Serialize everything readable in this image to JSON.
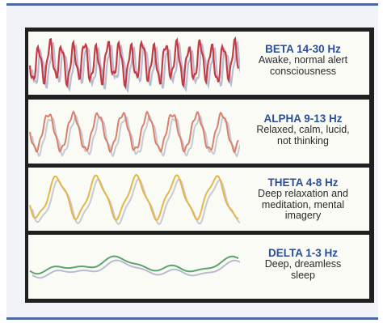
{
  "waves": [
    {
      "id": "beta",
      "title": "BETA 14-30 Hz",
      "lines": [
        "Awake, normal alert",
        "consciousness"
      ],
      "color": "#c63a45",
      "shadow": "#b9bccf"
    },
    {
      "id": "alpha",
      "title": "ALPHA 9-13 Hz",
      "lines": [
        "Relaxed, calm, lucid,",
        "not thinking"
      ],
      "color": "#d9806a",
      "shadow": "#c7c9d3"
    },
    {
      "id": "theta",
      "title": "THETA 4-8 Hz",
      "lines": [
        "Deep relaxation and",
        "meditation, mental",
        "imagery"
      ],
      "color": "#e7b547",
      "shadow": "#c7c9d3"
    },
    {
      "id": "delta",
      "title": "DELTA 1-3 Hz",
      "lines": [
        "Deep, dreamless",
        "sleep"
      ],
      "color": "#5aa46f",
      "shadow": "#b5bccd"
    }
  ]
}
